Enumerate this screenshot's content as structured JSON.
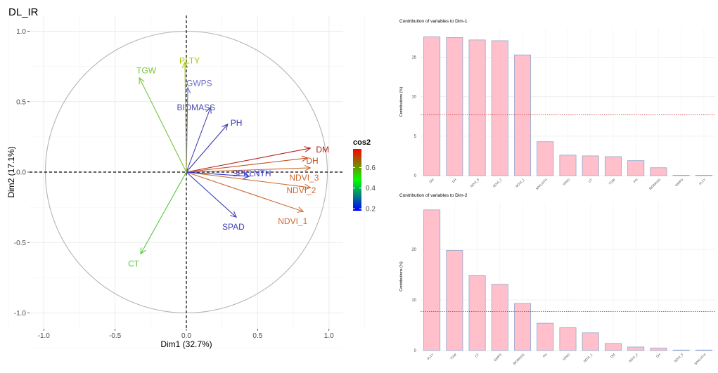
{
  "figure_title": "DL_IR",
  "chart_data": [
    {
      "type": "pca_variable_plot",
      "title": "DL_IR",
      "xlabel": "Dim1 (32.7%)",
      "ylabel": "Dim2 (17.1%)",
      "xlim": [
        -1.0,
        1.0
      ],
      "ylim": [
        -1.0,
        1.0
      ],
      "x_ticks": [
        -1.0,
        -0.5,
        0.0,
        0.5,
        1.0
      ],
      "y_ticks": [
        -1.0,
        -0.5,
        0.0,
        0.5,
        1.0
      ],
      "x_tick_labels": [
        "-1.0",
        "-0.5",
        "0.0",
        "0.5",
        "1.0"
      ],
      "y_tick_labels": [
        "-1.0",
        "-0.5",
        "0.0",
        "0.5",
        "1.0"
      ],
      "legend": {
        "title": "cos2",
        "ticks": [
          0.2,
          0.4,
          0.6
        ],
        "tick_labels": [
          "0.2",
          "0.4",
          "0.6"
        ],
        "range": [
          0.18,
          0.78
        ],
        "colors": [
          "#0000ff",
          "#00ff00",
          "#ff0000"
        ],
        "placement": "right"
      },
      "variables": [
        {
          "name": "DM",
          "x": 0.87,
          "y": 0.17,
          "cos2": 0.78,
          "color": "#b22222"
        },
        {
          "name": "DH",
          "x": 0.85,
          "y": 0.1,
          "cos2": 0.72,
          "color": "#c84e1e"
        },
        {
          "name": "NDVI_3",
          "x": 0.87,
          "y": 0.03,
          "cos2": 0.7,
          "color": "#cc6a30"
        },
        {
          "name": "NDVI_2",
          "x": 0.87,
          "y": -0.11,
          "cos2": 0.7,
          "color": "#cc6a30"
        },
        {
          "name": "NDVI_1",
          "x": 0.82,
          "y": -0.28,
          "cos2": 0.68,
          "color": "#cc6a30"
        },
        {
          "name": "SPKLNTH",
          "x": 0.44,
          "y": -0.03,
          "cos2": 0.22,
          "color": "#3030c8"
        },
        {
          "name": "SPAD",
          "x": 0.35,
          "y": -0.32,
          "cos2": 0.25,
          "color": "#4040b8"
        },
        {
          "name": "PH",
          "x": 0.29,
          "y": 0.34,
          "cos2": 0.22,
          "color": "#3a3aa8"
        },
        {
          "name": "BIOMASS",
          "x": 0.17,
          "y": 0.46,
          "cos2": 0.25,
          "color": "#4a4ab0"
        },
        {
          "name": "GWPS",
          "x": 0.01,
          "y": 0.6,
          "cos2": 0.36,
          "color": "#7070c8"
        },
        {
          "name": "PLTY",
          "x": -0.01,
          "y": 0.78,
          "cos2": 0.55,
          "color": "#a8c400"
        },
        {
          "name": "TGW",
          "x": -0.33,
          "y": 0.67,
          "cos2": 0.5,
          "color": "#7bc43a"
        },
        {
          "name": "CT",
          "x": -0.32,
          "y": -0.58,
          "cos2": 0.45,
          "color": "#52c83c"
        }
      ]
    },
    {
      "type": "bar",
      "title": "Contribution of variables to Dim-1",
      "ylabel": "Contributions (%)",
      "categories": [
        "DM",
        "DH",
        "NDVI_3",
        "NDVI_2",
        "NDVI_1",
        "SPKLNTH",
        "SPAD",
        "CT",
        "TGW",
        "PH",
        "BIOMASS",
        "GWPS",
        "PLTY"
      ],
      "values": [
        17.6,
        17.5,
        17.2,
        17.1,
        15.3,
        4.3,
        2.6,
        2.5,
        2.4,
        1.9,
        1.0,
        0.05,
        0.05
      ],
      "reference_line": 7.7,
      "ylim": [
        0,
        18.7
      ],
      "y_ticks": [
        0,
        5,
        10,
        15
      ],
      "y_tick_labels": [
        "0",
        "5",
        "10",
        "15"
      ],
      "bar_color": "#ffc0cb",
      "bar_edge": "#8fa8cc"
    },
    {
      "type": "bar",
      "title": "Contribution of variables to Dim-2",
      "ylabel": "Contributions (%)",
      "categories": [
        "PLTY",
        "TGW",
        "CT",
        "GWPS",
        "BIOMASS",
        "PH",
        "SPAD",
        "NDVI_1",
        "DM",
        "NDVI_2",
        "DH",
        "NDVI_3",
        "SPKLNTH"
      ],
      "values": [
        27.8,
        19.8,
        14.8,
        13.1,
        9.3,
        5.4,
        4.5,
        3.5,
        1.4,
        0.7,
        0.5,
        0.1,
        0.1
      ],
      "reference_line": 7.7,
      "ylim": [
        0,
        29.3
      ],
      "y_ticks": [
        0,
        10,
        20
      ],
      "y_tick_labels": [
        "0",
        "10",
        "20"
      ],
      "bar_color": "#ffc0cb",
      "bar_edge": "#8fa8cc"
    }
  ]
}
